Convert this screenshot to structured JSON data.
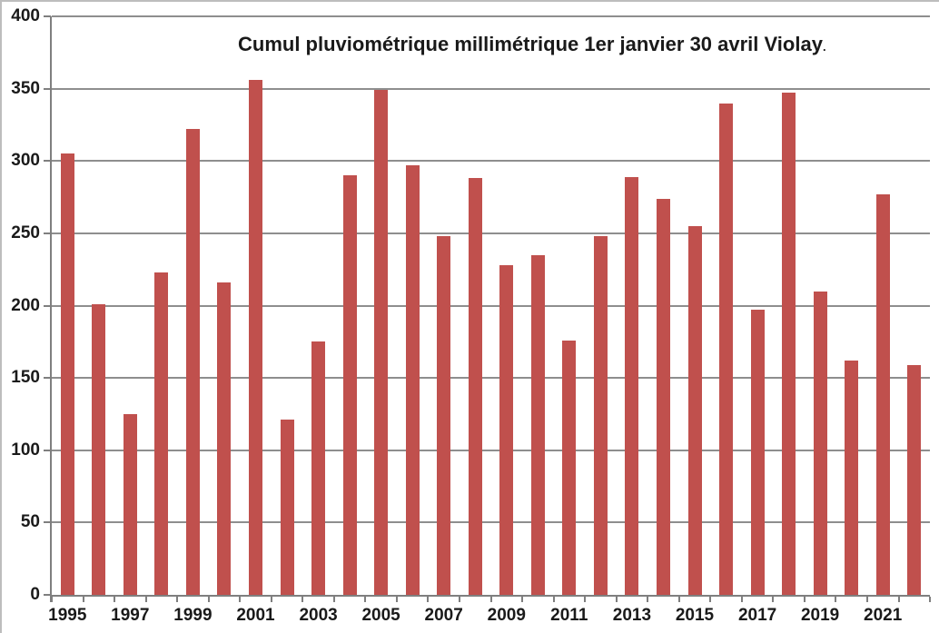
{
  "chart_data": {
    "type": "bar",
    "title": "Cumul pluviométrique millimétrique 1er janvier 30 avril Violay",
    "title_suffix": ".",
    "categories": [
      "1995",
      "1996",
      "1997",
      "1998",
      "1999",
      "2000",
      "2001",
      "2002",
      "2003",
      "2004",
      "2005",
      "2006",
      "2007",
      "2008",
      "2009",
      "2010",
      "2011",
      "2012",
      "2013",
      "2014",
      "2015",
      "2016",
      "2017",
      "2018",
      "2019",
      "2020",
      "2021",
      "2022"
    ],
    "values": [
      305,
      201,
      125,
      223,
      322,
      216,
      356,
      121,
      175,
      290,
      349,
      297,
      248,
      288,
      228,
      235,
      176,
      248,
      289,
      274,
      255,
      340,
      197,
      347,
      210,
      162,
      277,
      159
    ],
    "xlabel": "",
    "ylabel": "",
    "ylim": [
      0,
      400
    ],
    "ytick_step": 50,
    "xtick_labels": [
      "1995",
      "1997",
      "1999",
      "2001",
      "2003",
      "2005",
      "2007",
      "2009",
      "2011",
      "2013",
      "2015",
      "2017",
      "2019",
      "2021"
    ],
    "xtick_label_every": 2,
    "legend": false,
    "grid": true,
    "colors": {
      "bar": "#C0504D",
      "grid": "#8E8E8E",
      "axis": "#7F7F7F",
      "text": "#1A1A1A",
      "border": "#BDBDBD",
      "background": "#FFFFFF"
    }
  }
}
